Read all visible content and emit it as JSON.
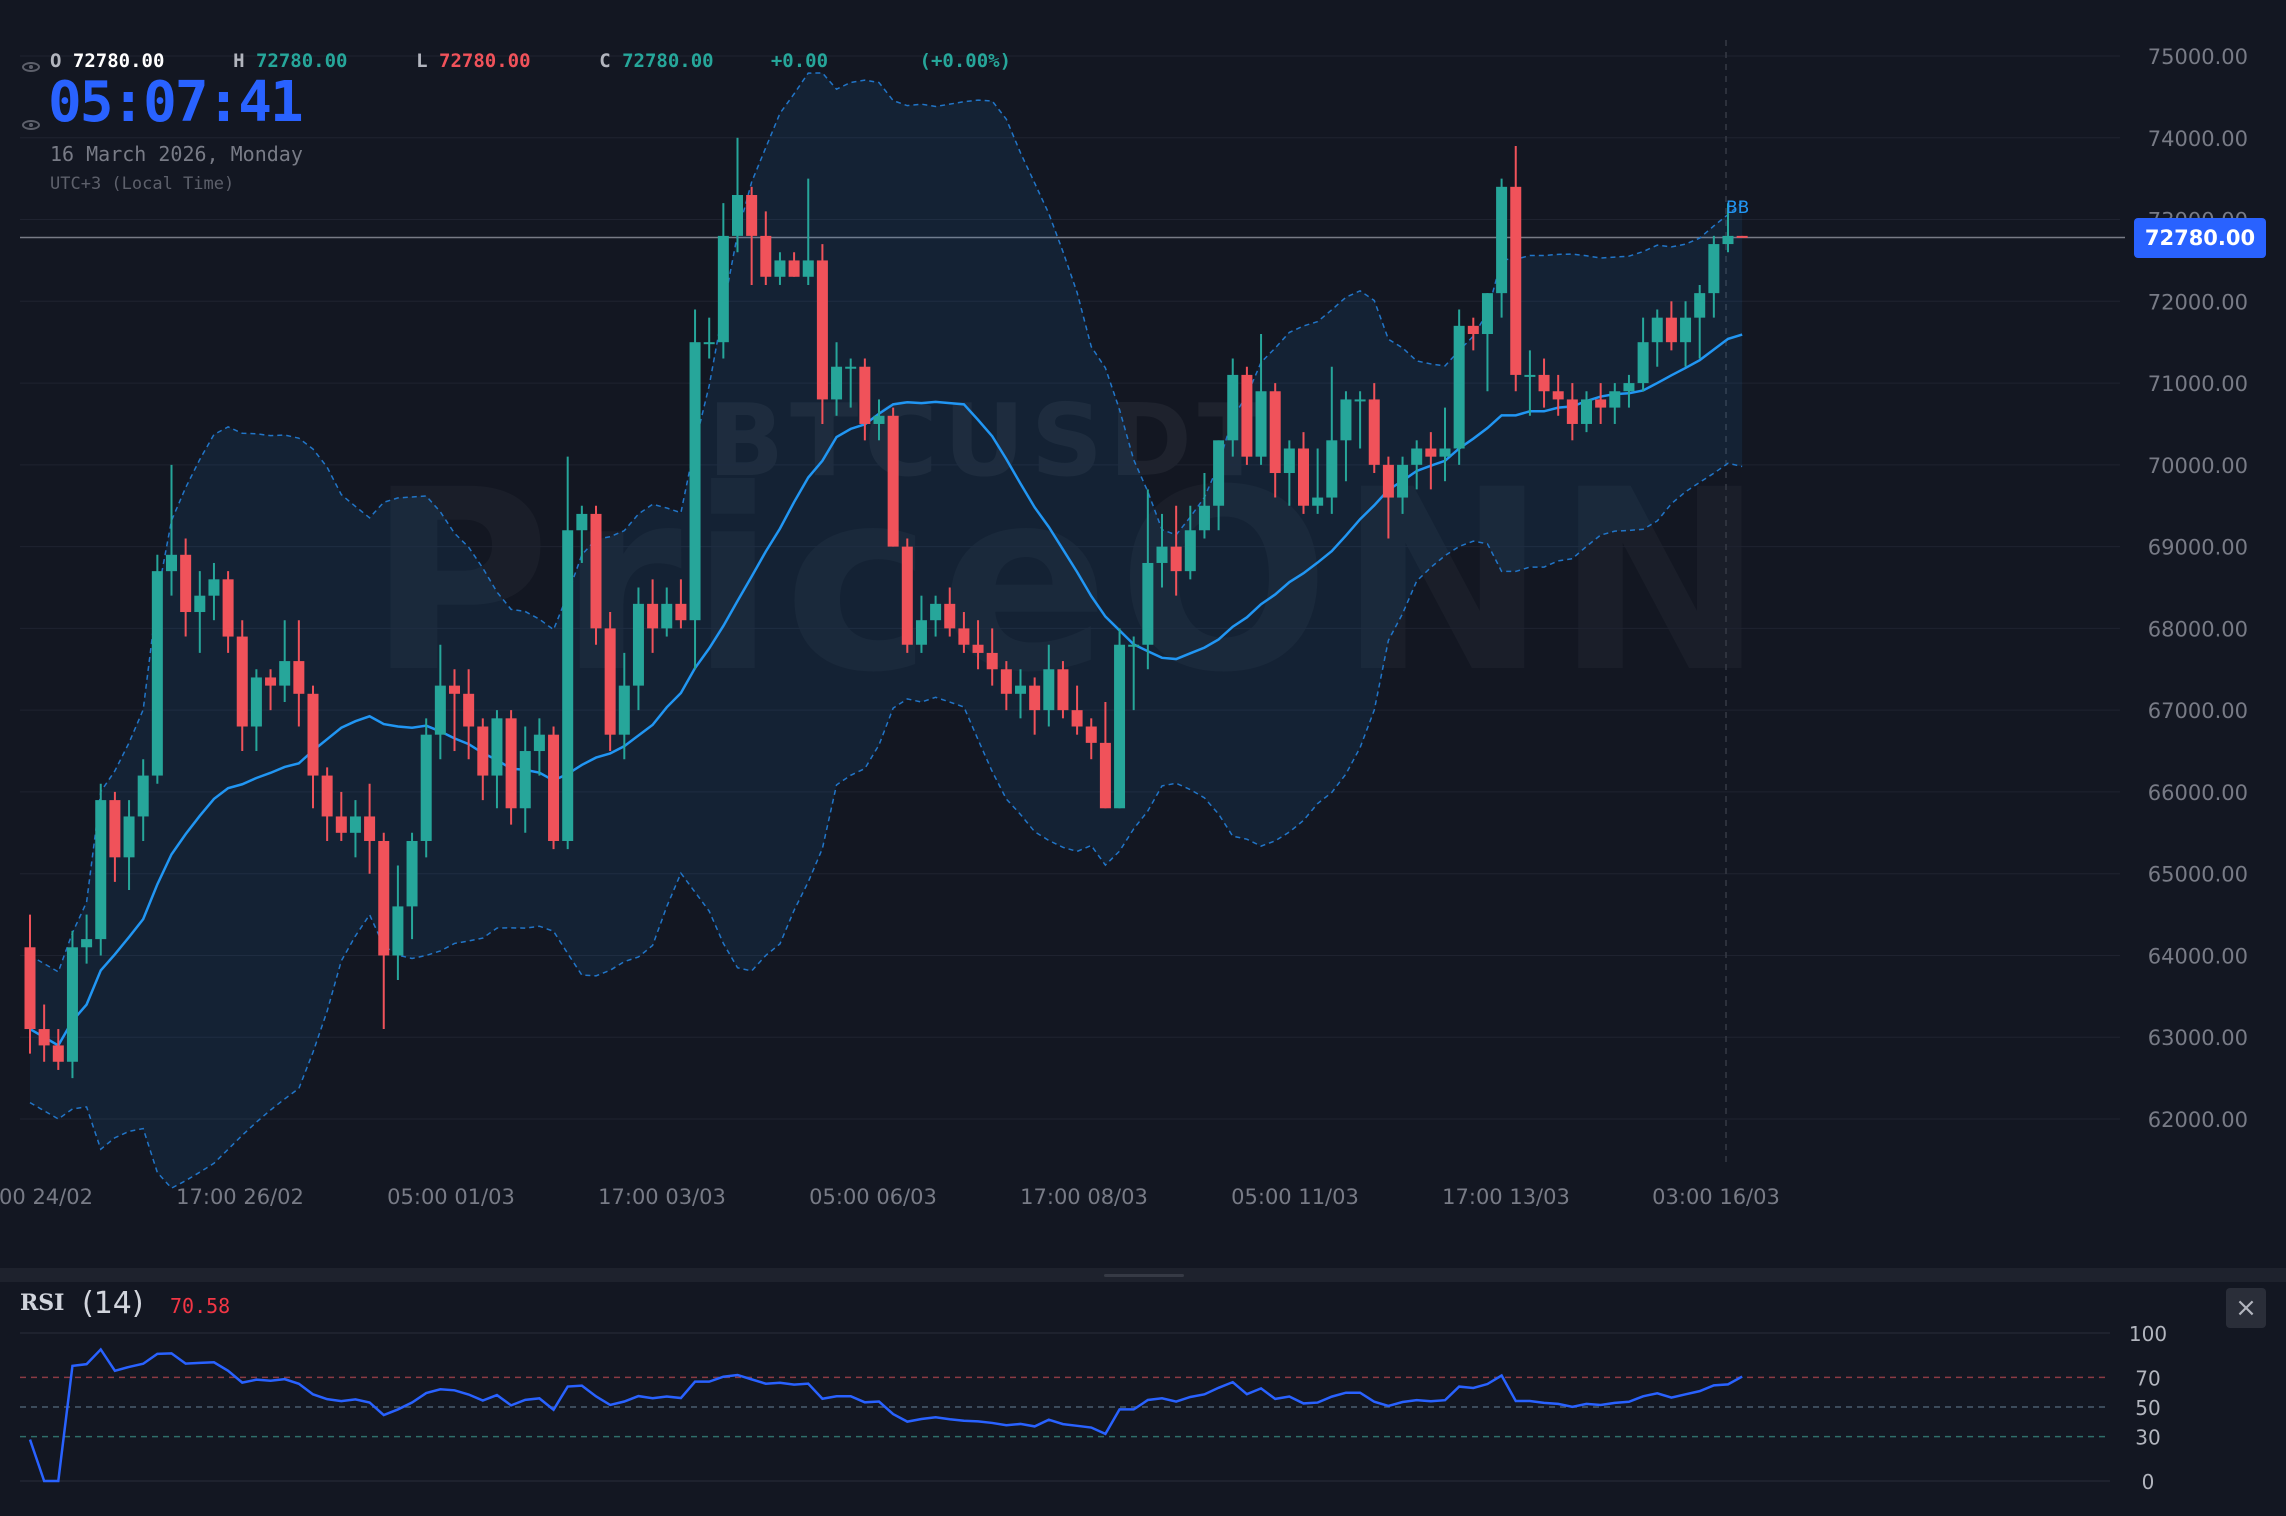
{
  "ohlc": {
    "o_label": "O",
    "o_value": "72780.00",
    "h_label": "H",
    "h_value": "72780.00",
    "l_label": "L",
    "l_value": "72780.00",
    "c_label": "C",
    "c_value": "72780.00",
    "change": "+0.00",
    "change_pct": "(+0.00%)"
  },
  "clock": {
    "time": "05:07:41",
    "date": "16 March 2026, Monday",
    "timezone": "UTC+3 (Local Time)"
  },
  "watermark": {
    "symbol": "BTCUSDT",
    "brand": "PriceONN"
  },
  "current_price_label": "72780.00",
  "bb_label": "BB",
  "rsi": {
    "title": "RSI",
    "period": "(14)",
    "value": "70.58",
    "close_icon": "close-icon"
  },
  "colors": {
    "up": "#26a69a",
    "down": "#f0525a",
    "bb": "#2196f3",
    "rsi": "#2962ff",
    "accent": "#2962ff",
    "background": "#131722"
  },
  "chart_data": [
    {
      "type": "candlestick",
      "symbol": "BTCUSDT",
      "y_ticks": [
        "75000.00",
        "74000.00",
        "73000.00",
        "72000.00",
        "71000.00",
        "70000.00",
        "69000.00",
        "68000.00",
        "67000.00",
        "66000.00",
        "65000.00",
        "64000.00",
        "63000.00",
        "62000.00"
      ],
      "ylim": [
        61500,
        75200
      ],
      "x_ticks": [
        "00 24/02",
        "17:00 26/02",
        "05:00 01/03",
        "17:00 03/03",
        "05:00 06/03",
        "17:00 08/03",
        "05:00 11/03",
        "17:00 13/03",
        "03:00 16/03"
      ],
      "last_price": 72780,
      "ohlc": [
        [
          64100,
          64500,
          62800,
          63100
        ],
        [
          63100,
          63400,
          62700,
          62900
        ],
        [
          62900,
          63100,
          62600,
          62700
        ],
        [
          62700,
          64300,
          62500,
          64100
        ],
        [
          64100,
          64500,
          63900,
          64200
        ],
        [
          64200,
          66100,
          64000,
          65900
        ],
        [
          65900,
          66000,
          64900,
          65200
        ],
        [
          65200,
          65900,
          64800,
          65700
        ],
        [
          65700,
          66400,
          65400,
          66200
        ],
        [
          66200,
          68900,
          66100,
          68700
        ],
        [
          68700,
          70000,
          68400,
          68900
        ],
        [
          68900,
          69100,
          67900,
          68200
        ],
        [
          68200,
          68700,
          67700,
          68400
        ],
        [
          68400,
          68800,
          68100,
          68600
        ],
        [
          68600,
          68700,
          67700,
          67900
        ],
        [
          67900,
          68100,
          66500,
          66800
        ],
        [
          66800,
          67500,
          66500,
          67400
        ],
        [
          67400,
          67500,
          67000,
          67300
        ],
        [
          67300,
          68100,
          67100,
          67600
        ],
        [
          67600,
          68100,
          66800,
          67200
        ],
        [
          67200,
          67300,
          65800,
          66200
        ],
        [
          66200,
          66300,
          65400,
          65700
        ],
        [
          65700,
          66000,
          65400,
          65500
        ],
        [
          65500,
          65900,
          65200,
          65700
        ],
        [
          65700,
          66100,
          65000,
          65400
        ],
        [
          65400,
          65500,
          63100,
          64000
        ],
        [
          64000,
          65100,
          63700,
          64600
        ],
        [
          64600,
          65500,
          64200,
          65400
        ],
        [
          65400,
          66900,
          65200,
          66700
        ],
        [
          66700,
          67800,
          66400,
          67300
        ],
        [
          67300,
          67500,
          66500,
          67200
        ],
        [
          67200,
          67500,
          66400,
          66800
        ],
        [
          66800,
          66900,
          65900,
          66200
        ],
        [
          66200,
          67000,
          65800,
          66900
        ],
        [
          66900,
          67000,
          65600,
          65800
        ],
        [
          65800,
          66800,
          65500,
          66500
        ],
        [
          66500,
          66900,
          66200,
          66700
        ],
        [
          66700,
          66800,
          65300,
          65400
        ],
        [
          65400,
          70100,
          65300,
          69200
        ],
        [
          69200,
          69500,
          68800,
          69400
        ],
        [
          69400,
          69500,
          67800,
          68000
        ],
        [
          68000,
          68200,
          66500,
          66700
        ],
        [
          66700,
          67700,
          66400,
          67300
        ],
        [
          67300,
          68500,
          67000,
          68300
        ],
        [
          68300,
          68600,
          67700,
          68000
        ],
        [
          68000,
          68500,
          67900,
          68300
        ],
        [
          68300,
          68600,
          68000,
          68100
        ],
        [
          68100,
          71900,
          67500,
          71500
        ],
        [
          71500,
          71800,
          71300,
          71500
        ],
        [
          71500,
          73200,
          71300,
          72800
        ],
        [
          72800,
          74000,
          72600,
          73300
        ],
        [
          73300,
          73400,
          72200,
          72800
        ],
        [
          72800,
          73100,
          72200,
          72300
        ],
        [
          72300,
          72600,
          72200,
          72500
        ],
        [
          72500,
          72600,
          72300,
          72300
        ],
        [
          72300,
          73500,
          72200,
          72500
        ],
        [
          72500,
          72700,
          70500,
          70800
        ],
        [
          70800,
          71500,
          70600,
          71200
        ],
        [
          71200,
          71300,
          70700,
          71200
        ],
        [
          71200,
          71300,
          70300,
          70500
        ],
        [
          70500,
          70800,
          70300,
          70600
        ],
        [
          70600,
          70700,
          69000,
          69000
        ],
        [
          69000,
          69100,
          67700,
          67800
        ],
        [
          67800,
          68400,
          67700,
          68100
        ],
        [
          68100,
          68400,
          67900,
          68300
        ],
        [
          68300,
          68500,
          67900,
          68000
        ],
        [
          68000,
          68200,
          67700,
          67800
        ],
        [
          67800,
          68100,
          67500,
          67700
        ],
        [
          67700,
          68000,
          67300,
          67500
        ],
        [
          67500,
          67600,
          67000,
          67200
        ],
        [
          67200,
          67500,
          66900,
          67300
        ],
        [
          67300,
          67400,
          66700,
          67000
        ],
        [
          67000,
          67800,
          66800,
          67500
        ],
        [
          67500,
          67600,
          66900,
          67000
        ],
        [
          67000,
          67300,
          66700,
          66800
        ],
        [
          66800,
          66900,
          66400,
          66600
        ],
        [
          66600,
          67100,
          65800,
          65800
        ],
        [
          65800,
          68000,
          65800,
          67800
        ],
        [
          67800,
          67900,
          67000,
          67800
        ],
        [
          67800,
          69700,
          67500,
          68800
        ],
        [
          68800,
          69400,
          68500,
          69000
        ],
        [
          69000,
          69500,
          68400,
          68700
        ],
        [
          68700,
          69500,
          68600,
          69200
        ],
        [
          69200,
          69900,
          69100,
          69500
        ],
        [
          69500,
          70300,
          69200,
          70300
        ],
        [
          70300,
          71300,
          70100,
          71100
        ],
        [
          71100,
          71200,
          70000,
          70100
        ],
        [
          70100,
          71600,
          70000,
          70900
        ],
        [
          70900,
          71000,
          69600,
          69900
        ],
        [
          69900,
          70300,
          69500,
          70200
        ],
        [
          70200,
          70400,
          69400,
          69500
        ],
        [
          69500,
          70200,
          69400,
          69600
        ],
        [
          69600,
          71200,
          69400,
          70300
        ],
        [
          70300,
          70900,
          69800,
          70800
        ],
        [
          70800,
          70900,
          70200,
          70800
        ],
        [
          70800,
          71000,
          69900,
          70000
        ],
        [
          70000,
          70100,
          69100,
          69600
        ],
        [
          69600,
          70100,
          69400,
          70000
        ],
        [
          70000,
          70300,
          69700,
          70200
        ],
        [
          70200,
          70400,
          69700,
          70100
        ],
        [
          70100,
          70700,
          69800,
          70200
        ],
        [
          70200,
          71900,
          70000,
          71700
        ],
        [
          71700,
          71800,
          71400,
          71600
        ],
        [
          71600,
          72100,
          70900,
          72100
        ],
        [
          72100,
          73500,
          71800,
          73400
        ],
        [
          73400,
          73900,
          70900,
          71100
        ],
        [
          71100,
          71400,
          70600,
          71100
        ],
        [
          71100,
          71300,
          70700,
          70900
        ],
        [
          70900,
          71100,
          70600,
          70800
        ],
        [
          70800,
          71000,
          70300,
          70500
        ],
        [
          70500,
          70900,
          70400,
          70800
        ],
        [
          70800,
          71000,
          70500,
          70700
        ],
        [
          70700,
          71000,
          70500,
          70900
        ],
        [
          70900,
          71100,
          70700,
          71000
        ],
        [
          71000,
          71800,
          70900,
          71500
        ],
        [
          71500,
          71900,
          71200,
          71800
        ],
        [
          71800,
          72000,
          71400,
          71500
        ],
        [
          71500,
          72000,
          71200,
          71800
        ],
        [
          71800,
          72200,
          71300,
          72100
        ],
        [
          72100,
          72800,
          71800,
          72700
        ],
        [
          72700,
          73200,
          72600,
          72800
        ],
        [
          72800,
          72800,
          72780,
          72780
        ]
      ]
    },
    {
      "type": "line",
      "title": "RSI",
      "y_ticks": [
        "100",
        "70",
        "50",
        "30",
        "0"
      ],
      "ylim": [
        0,
        100
      ],
      "levels": [
        70,
        50,
        30
      ],
      "last_value": 70.58
    }
  ]
}
